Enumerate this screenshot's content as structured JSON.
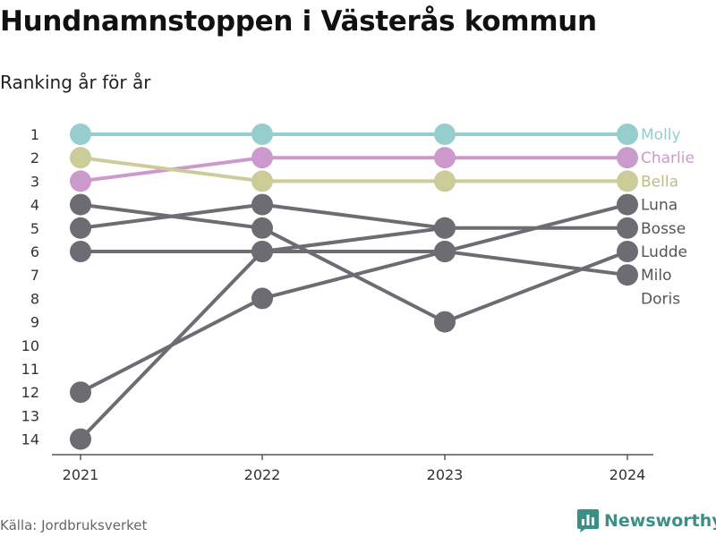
{
  "title": "Hundnamnstoppen i Västerås kommun",
  "subtitle": "Ranking år för år",
  "source": "Källa: Jordbruksverket",
  "brand": {
    "name": "Newsworthy",
    "icon": "bar-chart-logo-icon",
    "color": "#3a8f86"
  },
  "chart_data": {
    "type": "line",
    "x": [
      "2021",
      "2022",
      "2023",
      "2024"
    ],
    "y_ticks": [
      "1",
      "2",
      "3",
      "4",
      "5",
      "6",
      "7",
      "8",
      "9",
      "10",
      "11",
      "12",
      "13",
      "14"
    ],
    "ylim": [
      1,
      14
    ],
    "y_reversed": true,
    "grid": false,
    "series": [
      {
        "name": "Molly",
        "values": [
          1,
          1,
          1,
          1
        ],
        "color": "#96cdcd",
        "label_color": "#96cdcd"
      },
      {
        "name": "Charlie",
        "values": [
          3,
          2,
          2,
          2
        ],
        "color": "#cc99cc",
        "label_color": "#cc99cc"
      },
      {
        "name": "Bella",
        "values": [
          2,
          3,
          3,
          3
        ],
        "color": "#cccc99",
        "label_color": "#bdbd80"
      },
      {
        "name": "Luna",
        "values": [
          12,
          8,
          6,
          4
        ],
        "color": "#6d6c72",
        "label_color": "#555555"
      },
      {
        "name": "Bosse",
        "values": [
          5,
          4,
          5,
          5
        ],
        "color": "#6d6c72",
        "label_color": "#555555"
      },
      {
        "name": "Ludde",
        "values": [
          4,
          5,
          9,
          6
        ],
        "color": "#6d6c72",
        "label_color": "#555555"
      },
      {
        "name": "Milo",
        "values": [
          6,
          6,
          6,
          7
        ],
        "color": "#6d6c72",
        "label_color": "#555555"
      },
      {
        "name": "Doris",
        "values": [
          14,
          6,
          5,
          null
        ],
        "color": "#6d6c72",
        "label_color": "#555555"
      }
    ]
  }
}
